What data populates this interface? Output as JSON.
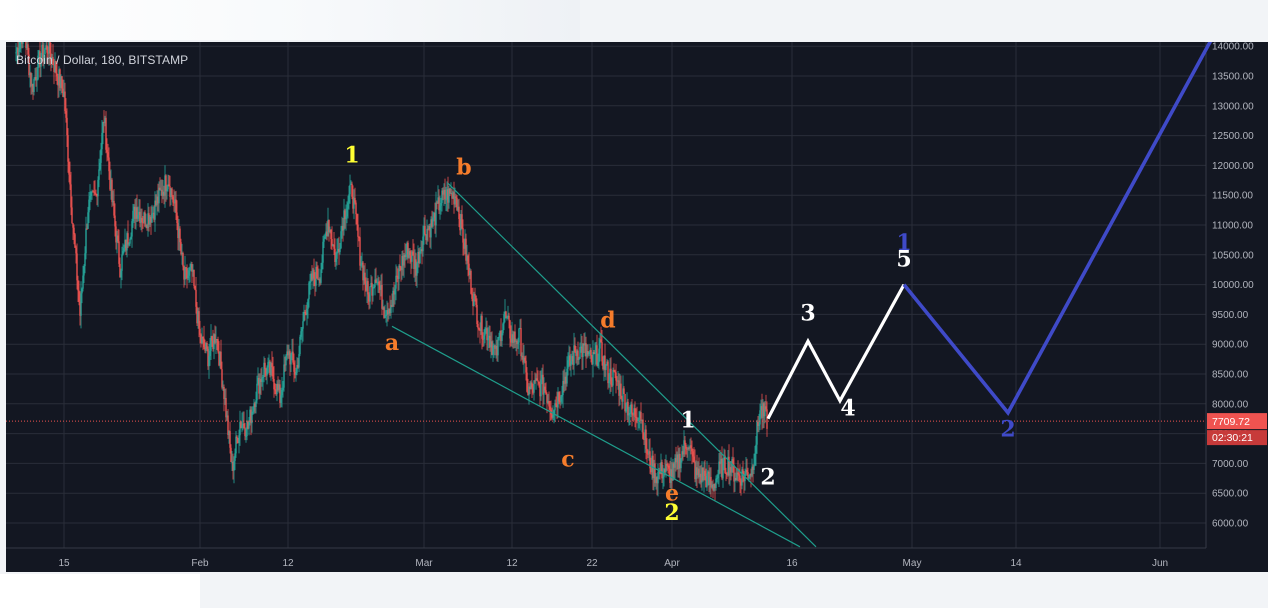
{
  "chart_data": {
    "type": "candlestick",
    "title": "Bitcoin / Dollar, 180, BITSTAMP",
    "ylim": [
      5600,
      14100
    ],
    "y_ticks": [
      "6000.00",
      "6500.00",
      "7000.00",
      "7500.00",
      "8000.00",
      "8500.00",
      "9000.00",
      "9500.00",
      "10000.00",
      "10500.00",
      "11000.00",
      "11500.00",
      "12000.00",
      "12500.00",
      "13000.00",
      "13500.00",
      "14000.00"
    ],
    "x_ticks": [
      {
        "label": "15",
        "date": "2018-01-15"
      },
      {
        "label": "Feb",
        "date": "2018-02-01"
      },
      {
        "label": "12",
        "date": "2018-02-12"
      },
      {
        "label": "Mar",
        "date": "2018-03-01"
      },
      {
        "label": "12",
        "date": "2018-03-12"
      },
      {
        "label": "22",
        "date": "2018-03-22"
      },
      {
        "label": "Apr",
        "date": "2018-04-01"
      },
      {
        "label": "16",
        "date": "2018-04-16"
      },
      {
        "label": "May",
        "date": "2018-05-01"
      },
      {
        "label": "14",
        "date": "2018-05-14"
      },
      {
        "label": "Jun",
        "date": "2018-06-01"
      }
    ],
    "current_price": "7709.72",
    "countdown": "02:30:21",
    "price_path": [
      [
        "2018-01-09",
        13900
      ],
      [
        "2018-01-10",
        14300
      ],
      [
        "2018-01-11",
        13300
      ],
      [
        "2018-01-12",
        13800
      ],
      [
        "2018-01-13",
        14000
      ],
      [
        "2018-01-14",
        13600
      ],
      [
        "2018-01-15",
        13200
      ],
      [
        "2018-01-16",
        11200
      ],
      [
        "2018-01-17",
        9500
      ],
      [
        "2018-01-18",
        11300
      ],
      [
        "2018-01-19",
        11500
      ],
      [
        "2018-01-20",
        12800
      ],
      [
        "2018-01-21",
        11400
      ],
      [
        "2018-01-22",
        10300
      ],
      [
        "2018-01-23",
        10800
      ],
      [
        "2018-01-24",
        11300
      ],
      [
        "2018-01-25",
        11100
      ],
      [
        "2018-01-26",
        11200
      ],
      [
        "2018-01-27",
        11500
      ],
      [
        "2018-01-28",
        11800
      ],
      [
        "2018-01-29",
        11200
      ],
      [
        "2018-01-30",
        10100
      ],
      [
        "2018-01-31",
        10200
      ],
      [
        "2018-02-01",
        9100
      ],
      [
        "2018-02-02",
        8800
      ],
      [
        "2018-02-03",
        9200
      ],
      [
        "2018-02-04",
        8200
      ],
      [
        "2018-02-05",
        6900
      ],
      [
        "2018-02-06",
        7700
      ],
      [
        "2018-02-07",
        7600
      ],
      [
        "2018-02-08",
        8200
      ],
      [
        "2018-02-09",
        8600
      ],
      [
        "2018-02-10",
        8500
      ],
      [
        "2018-02-11",
        8100
      ],
      [
        "2018-02-12",
        8900
      ],
      [
        "2018-02-13",
        8500
      ],
      [
        "2018-02-14",
        9500
      ],
      [
        "2018-02-15",
        10100
      ],
      [
        "2018-02-16",
        10200
      ],
      [
        "2018-02-17",
        11100
      ],
      [
        "2018-02-18",
        10400
      ],
      [
        "2018-02-19",
        11200
      ],
      [
        "2018-02-20",
        11600
      ],
      [
        "2018-02-21",
        10500
      ],
      [
        "2018-02-22",
        9800
      ],
      [
        "2018-02-23",
        10200
      ],
      [
        "2018-02-24",
        9600
      ],
      [
        "2018-02-25",
        9700
      ],
      [
        "2018-02-26",
        10300
      ],
      [
        "2018-02-27",
        10600
      ],
      [
        "2018-02-28",
        10300
      ],
      [
        "2018-03-01",
        10900
      ],
      [
        "2018-03-02",
        11000
      ],
      [
        "2018-03-03",
        11400
      ],
      [
        "2018-03-04",
        11500
      ],
      [
        "2018-03-05",
        11500
      ],
      [
        "2018-03-06",
        10700
      ],
      [
        "2018-03-07",
        9900
      ],
      [
        "2018-03-08",
        9300
      ],
      [
        "2018-03-09",
        9200
      ],
      [
        "2018-03-10",
        8800
      ],
      [
        "2018-03-11",
        9500
      ],
      [
        "2018-03-12",
        9100
      ],
      [
        "2018-03-13",
        9100
      ],
      [
        "2018-03-14",
        8200
      ],
      [
        "2018-03-15",
        8300
      ],
      [
        "2018-03-16",
        8300
      ],
      [
        "2018-03-17",
        7900
      ],
      [
        "2018-03-18",
        8200
      ],
      [
        "2018-03-19",
        8600
      ],
      [
        "2018-03-20",
        8900
      ],
      [
        "2018-03-21",
        8900
      ],
      [
        "2018-03-22",
        8700
      ],
      [
        "2018-03-23",
        8900
      ],
      [
        "2018-03-24",
        8500
      ],
      [
        "2018-03-25",
        8400
      ],
      [
        "2018-03-26",
        8100
      ],
      [
        "2018-03-27",
        7800
      ],
      [
        "2018-03-28",
        7900
      ],
      [
        "2018-03-29",
        7100
      ],
      [
        "2018-03-30",
        6800
      ],
      [
        "2018-03-31",
        6900
      ],
      [
        "2018-04-01",
        6800
      ],
      [
        "2018-04-02",
        7100
      ],
      [
        "2018-04-03",
        7400
      ],
      [
        "2018-04-04",
        6800
      ],
      [
        "2018-04-05",
        6800
      ],
      [
        "2018-04-06",
        6600
      ],
      [
        "2018-04-07",
        6900
      ],
      [
        "2018-04-08",
        7000
      ],
      [
        "2018-04-09",
        6800
      ],
      [
        "2018-04-10",
        6800
      ],
      [
        "2018-04-11",
        6900
      ],
      [
        "2018-04-12",
        7900
      ],
      [
        "2018-04-13",
        7700
      ]
    ],
    "price_range_extremes": {
      "high": [
        "2018-03-05",
        11700
      ],
      "low": [
        "2018-02-06",
        6000
      ]
    },
    "trendlines": [
      {
        "name": "upper",
        "from": [
          "2018-03-04",
          11700
        ],
        "to": [
          "2018-04-19",
          5600
        ]
      },
      {
        "name": "lower",
        "from": [
          "2018-02-25",
          9300
        ],
        "to": [
          "2018-04-17",
          5600
        ]
      }
    ],
    "projection_white": [
      [
        "2018-04-13",
        7750
      ],
      [
        "2018-04-18",
        9050
      ],
      [
        "2018-04-22",
        8050
      ],
      [
        "2018-04-30",
        10000
      ]
    ],
    "projection_blue": [
      [
        "2018-04-30",
        10000
      ],
      [
        "2018-05-13",
        7850
      ],
      [
        "2018-06-09",
        14500
      ]
    ],
    "wave_labels": [
      {
        "text": "1",
        "color": "#ffff33",
        "date": "2018-02-20",
        "price": 12050
      },
      {
        "text": "b",
        "color": "#f57c2b",
        "date": "2018-03-06",
        "price": 11850
      },
      {
        "text": "a",
        "color": "#f57c2b",
        "date": "2018-02-25",
        "price": 8900
      },
      {
        "text": "d",
        "color": "#f57c2b",
        "date": "2018-03-24",
        "price": 9280
      },
      {
        "text": "c",
        "color": "#f57c2b",
        "date": "2018-03-19",
        "price": 6950
      },
      {
        "text": "e",
        "color": "#f57c2b",
        "date": "2018-04-01",
        "price": 6380
      },
      {
        "text": "2",
        "color": "#ffff33",
        "date": "2018-04-01",
        "price": 6050
      },
      {
        "text": "1",
        "color": "#ffffff",
        "date": "2018-04-03",
        "price": 7600
      },
      {
        "text": "2",
        "color": "#ffffff",
        "date": "2018-04-13",
        "price": 6650
      },
      {
        "text": "3",
        "color": "#ffffff",
        "date": "2018-04-18",
        "price": 9400
      },
      {
        "text": "4",
        "color": "#ffffff",
        "date": "2018-04-23",
        "price": 7800
      },
      {
        "text": "5",
        "color": "#ffffff",
        "date": "2018-04-30",
        "price": 10300
      },
      {
        "text": "1",
        "color": "#3f4ac8",
        "date": "2018-04-30",
        "price": 10580
      },
      {
        "text": "2",
        "color": "#3f4ac8",
        "date": "2018-05-13",
        "price": 7450
      }
    ],
    "colors": {
      "up": "#26a69a",
      "down": "#ef5350",
      "trendline": "#1f9e8c",
      "projection_white": "#ffffff",
      "projection_blue": "#3f4ac8",
      "price_line": "#ef5350"
    }
  }
}
